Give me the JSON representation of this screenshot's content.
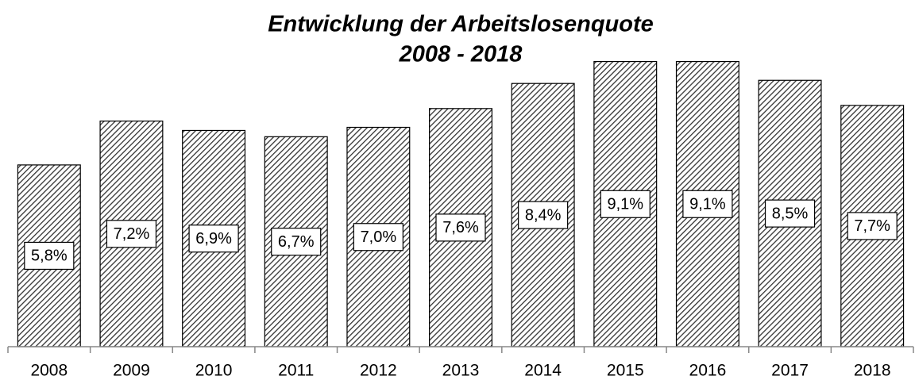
{
  "chart_data": {
    "type": "bar",
    "title": "Entwicklung der Arbeitslosenquote",
    "subtitle": "2008 - 2018",
    "categories": [
      "2008",
      "2009",
      "2010",
      "2011",
      "2012",
      "2013",
      "2014",
      "2015",
      "2016",
      "2017",
      "2018"
    ],
    "values": [
      5.8,
      7.2,
      6.9,
      6.7,
      7.0,
      7.6,
      8.4,
      9.1,
      9.1,
      8.5,
      7.7
    ],
    "value_labels": [
      "5,8%",
      "7,2%",
      "6,9%",
      "6,7%",
      "7,0%",
      "7,6%",
      "8,4%",
      "9,1%",
      "9,1%",
      "8,5%",
      "7,7%"
    ],
    "color": "#333333",
    "ylim": [
      0,
      10
    ]
  }
}
